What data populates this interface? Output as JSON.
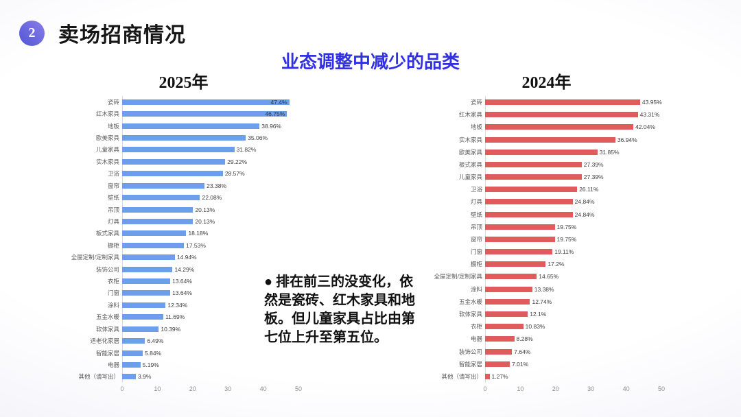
{
  "slide": {
    "badge": "2",
    "title": "卖场招商情况",
    "subtitle": "业态调整中减少的品类",
    "annotation": "● 排在前三的没变化，依然是瓷砖、红木家具和地板。但儿童家具占比由第七位上升至第五位。"
  },
  "colors": {
    "subtitle_blue": "#3131e3",
    "badge_gradient_start": "#4f55d4",
    "badge_gradient_end": "#8c7ee8",
    "bar_2025": "#6d9eeb",
    "bar_2024": "#e05c5c",
    "axis_text": "#8c8c8c",
    "category_text": "#595959",
    "value_text": "#404040"
  },
  "chart_data": [
    {
      "type": "bar",
      "orientation": "horizontal",
      "title": "2025年",
      "bar_color": "#6d9eeb",
      "xlim": [
        0,
        50
      ],
      "x_ticks": [
        "0",
        "10",
        "20",
        "30",
        "40",
        "50"
      ],
      "grid": false,
      "legend": "none",
      "categories": [
        "瓷砖",
        "红木家具",
        "地板",
        "欧美家具",
        "儿童家具",
        "实木家具",
        "卫浴",
        "窗帘",
        "壁纸",
        "吊顶",
        "灯具",
        "板式家具",
        "橱柜",
        "全屋定制/定制家具",
        "装饰公司",
        "衣柜",
        "门窗",
        "涂料",
        "五金水暖",
        "软体家具",
        "适老化家居",
        "智能家居",
        "电器",
        "其他（请写出）"
      ],
      "values": [
        47.4,
        46.75,
        38.96,
        35.06,
        31.82,
        29.22,
        28.57,
        23.38,
        22.08,
        20.13,
        20.13,
        18.18,
        17.53,
        14.94,
        14.29,
        13.64,
        13.64,
        12.34,
        11.69,
        10.39,
        6.49,
        5.84,
        5.19,
        3.9
      ],
      "labels": [
        "47.4%",
        "46.75%",
        "38.96%",
        "35.06%",
        "31.82%",
        "29.22%",
        "28.57%",
        "23.38%",
        "22.08%",
        "20.13%",
        "20.13%",
        "18.18%",
        "17.53%",
        "14.94%",
        "14.29%",
        "13.64%",
        "13.64%",
        "12.34%",
        "11.69%",
        "10.39%",
        "6.49%",
        "5.84%",
        "5.19%",
        "3.9%"
      ]
    },
    {
      "type": "bar",
      "orientation": "horizontal",
      "title": "2024年",
      "bar_color": "#e05c5c",
      "xlim": [
        0,
        50
      ],
      "x_ticks": [
        "0",
        "10",
        "20",
        "30",
        "40",
        "50"
      ],
      "grid": false,
      "legend": "none",
      "categories": [
        "瓷砖",
        "红木家具",
        "地板",
        "实木家具",
        "欧美家具",
        "板式家具",
        "儿童家具",
        "卫浴",
        "灯具",
        "壁纸",
        "吊顶",
        "窗帘",
        "门窗",
        "橱柜",
        "全屋定制/定制家具",
        "涂料",
        "五金水暖",
        "软体家具",
        "衣柜",
        "电器",
        "装饰公司",
        "智能家居",
        "其他（请写出）"
      ],
      "values": [
        43.95,
        43.31,
        42.04,
        36.94,
        31.85,
        27.39,
        27.39,
        26.11,
        24.84,
        24.84,
        19.75,
        19.75,
        19.11,
        17.2,
        14.65,
        13.38,
        12.74,
        12.1,
        10.83,
        8.28,
        7.64,
        7.01,
        1.27
      ],
      "labels": [
        "43.95%",
        "43.31%",
        "42.04%",
        "36.94%",
        "31.85%",
        "27.39%",
        "27.39%",
        "26.11%",
        "24.84%",
        "24.84%",
        "19.75%",
        "19.75%",
        "19.11%",
        "17.2%",
        "14.65%",
        "13.38%",
        "12.74%",
        "12.1%",
        "10.83%",
        "8.28%",
        "7.64%",
        "7.01%",
        "1.27%"
      ]
    }
  ]
}
